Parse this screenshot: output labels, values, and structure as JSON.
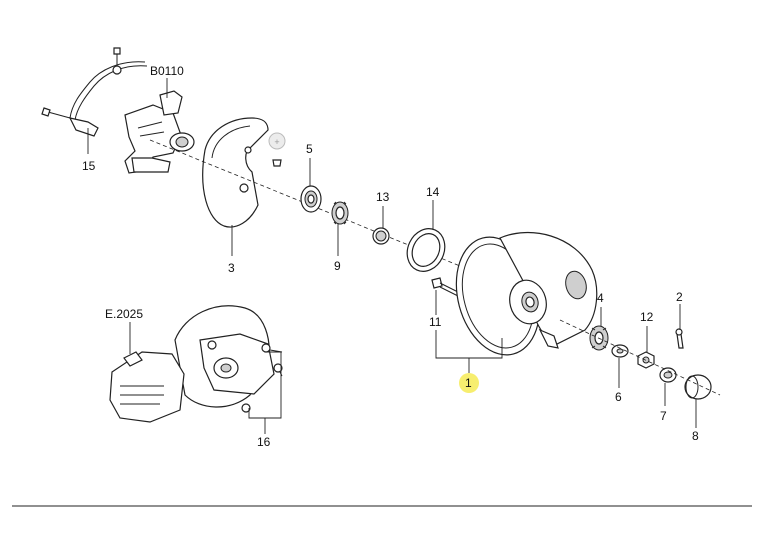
{
  "diagram": {
    "references": {
      "b0110": "B0110",
      "e2025": "E.2025"
    },
    "callouts": {
      "c1": "1",
      "c2": "2",
      "c3": "3",
      "c4": "4",
      "c5": "5",
      "c6": "6",
      "c7": "7",
      "c8": "8",
      "c9": "9",
      "c11": "11",
      "c12": "12",
      "c13": "13",
      "c14": "14",
      "c15": "15",
      "c16": "16"
    },
    "colors": {
      "highlight": "#f7ee6f",
      "line": "#222222",
      "background": "#ffffff"
    }
  }
}
